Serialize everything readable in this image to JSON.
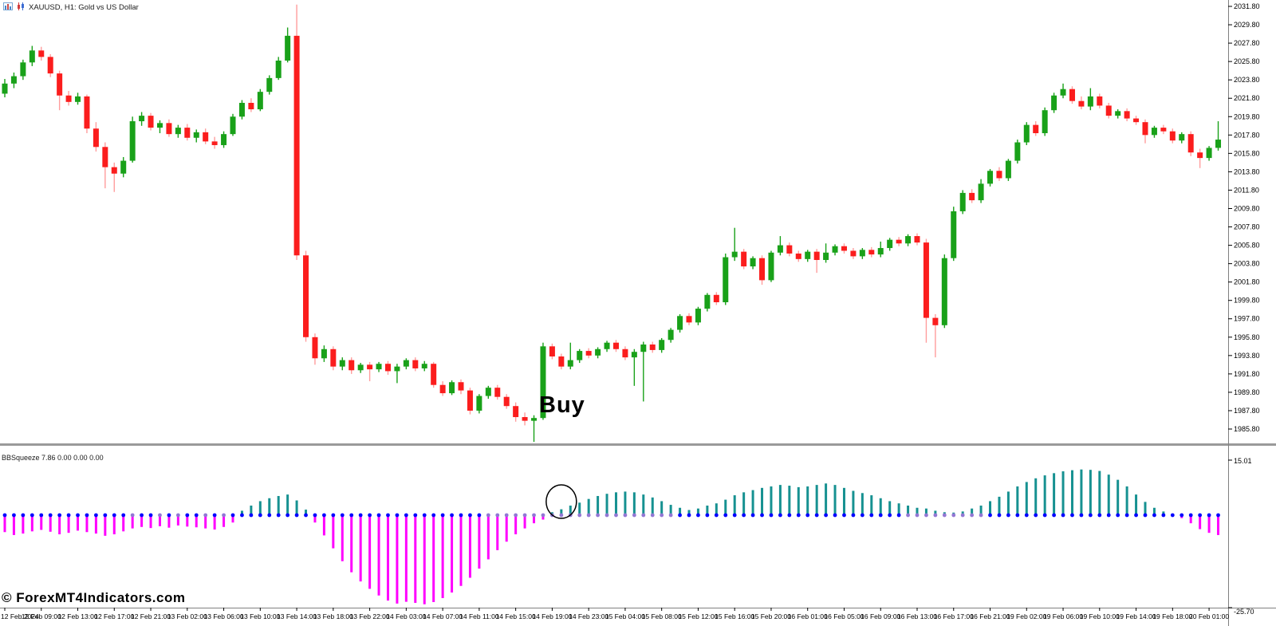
{
  "window": {
    "title": "XAUUSD, H1:  Gold vs US Dollar",
    "icons": [
      "bar-chart-icon",
      "candlestick-icon"
    ]
  },
  "annotations": {
    "buy_text": "Buy",
    "watermark": "© ForexMT4Indicators.com"
  },
  "indicator_header": "BBSqueeze 7.86 0.00 0.00 0.00",
  "chart_data": [
    {
      "type": "candlestick",
      "title": "XAUUSD, H1: Gold vs US Dollar",
      "symbol": "XAUUSD",
      "timeframe": "H1",
      "grid": false,
      "ylim": [
        1984.2,
        2032.5
      ],
      "price_axis": {
        "labels": [
          "2031.80",
          "2029.80",
          "2027.80",
          "2025.80",
          "2023.80",
          "2021.80",
          "2019.80",
          "2017.80",
          "2015.80",
          "2013.80",
          "2011.80",
          "2009.80",
          "2007.80",
          "2005.80",
          "2003.80",
          "2001.80",
          "1999.80",
          "1997.80",
          "1995.80",
          "1993.80",
          "1991.80",
          "1989.80",
          "1987.80",
          "1985.80"
        ],
        "step": 2.0
      },
      "time_labels": [
        "12 Feb 2024",
        "12 Feb 09:00",
        "12 Feb 13:00",
        "12 Feb 17:00",
        "12 Feb 21:00",
        "13 Feb 02:00",
        "13 Feb 06:00",
        "13 Feb 10:00",
        "13 Feb 14:00",
        "13 Feb 18:00",
        "13 Feb 22:00",
        "14 Feb 03:00",
        "14 Feb 07:00",
        "14 Feb 11:00",
        "14 Feb 15:00",
        "14 Feb 19:00",
        "14 Feb 23:00",
        "15 Feb 04:00",
        "15 Feb 08:00",
        "15 Feb 12:00",
        "15 Feb 16:00",
        "15 Feb 20:00",
        "16 Feb 01:00",
        "16 Feb 05:00",
        "16 Feb 09:00",
        "16 Feb 13:00",
        "16 Feb 17:00",
        "16 Feb 21:00",
        "19 Feb 02:00",
        "19 Feb 06:00",
        "19 Feb 10:00",
        "19 Feb 14:00",
        "19 Feb 18:00",
        "20 Feb 01:00"
      ],
      "time_label_candle_step": 4,
      "buy_signal_candle_index": 59,
      "colors": {
        "bull": "#19a119",
        "bear": "#fb1d1d",
        "bull_wick": "#19a119",
        "bear_wick": "#ff9d9d"
      },
      "candles": [
        [
          2022.3,
          2023.9,
          2021.9,
          2023.4
        ],
        [
          2023.4,
          2024.6,
          2022.9,
          2024.2
        ],
        [
          2024.2,
          2026.0,
          2023.8,
          2025.7
        ],
        [
          2025.7,
          2027.5,
          2025.3,
          2027.0
        ],
        [
          2027.0,
          2027.4,
          2025.9,
          2026.3
        ],
        [
          2026.3,
          2026.6,
          2024.1,
          2024.5
        ],
        [
          2024.5,
          2024.8,
          2020.5,
          2022.1
        ],
        [
          2022.1,
          2022.6,
          2021.0,
          2021.4
        ],
        [
          2021.4,
          2022.4,
          2021.1,
          2022.0
        ],
        [
          2022.0,
          2022.2,
          2018.0,
          2018.5
        ],
        [
          2018.5,
          2019.2,
          2016.0,
          2016.5
        ],
        [
          2016.5,
          2017.0,
          2012.0,
          2014.3
        ],
        [
          2014.3,
          2014.8,
          2011.6,
          2013.6
        ],
        [
          2013.6,
          2015.4,
          2013.2,
          2015.0
        ],
        [
          2015.0,
          2019.8,
          2014.8,
          2019.3
        ],
        [
          2019.3,
          2020.3,
          2018.8,
          2019.9
        ],
        [
          2019.9,
          2020.2,
          2018.3,
          2018.6
        ],
        [
          2018.6,
          2019.4,
          2018.0,
          2019.1
        ],
        [
          2019.1,
          2019.5,
          2017.6,
          2017.9
        ],
        [
          2017.9,
          2018.9,
          2017.5,
          2018.6
        ],
        [
          2018.6,
          2019.0,
          2017.2,
          2017.5
        ],
        [
          2017.5,
          2018.4,
          2017.0,
          2018.1
        ],
        [
          2018.1,
          2018.5,
          2016.8,
          2017.1
        ],
        [
          2017.1,
          2017.6,
          2016.3,
          2016.7
        ],
        [
          2016.7,
          2018.2,
          2016.4,
          2017.9
        ],
        [
          2017.9,
          2020.1,
          2017.7,
          2019.8
        ],
        [
          2019.8,
          2021.6,
          2019.5,
          2021.3
        ],
        [
          2021.3,
          2021.8,
          2020.3,
          2020.6
        ],
        [
          2020.6,
          2022.8,
          2020.4,
          2022.5
        ],
        [
          2022.5,
          2024.3,
          2022.2,
          2024.0
        ],
        [
          2024.0,
          2026.3,
          2023.8,
          2025.9
        ],
        [
          2025.9,
          2029.5,
          2025.7,
          2028.6
        ],
        [
          2028.6,
          2032.0,
          2004.2,
          2004.7
        ],
        [
          2004.7,
          2005.2,
          1995.3,
          1995.8
        ],
        [
          1995.8,
          1996.2,
          1992.8,
          1993.5
        ],
        [
          1993.5,
          1994.9,
          1993.1,
          1994.5
        ],
        [
          1994.5,
          1994.8,
          1992.2,
          1992.6
        ],
        [
          1992.6,
          1993.6,
          1992.2,
          1993.3
        ],
        [
          1993.3,
          1993.6,
          1991.8,
          1992.2
        ],
        [
          1992.2,
          1993.0,
          1991.9,
          1992.8
        ],
        [
          1992.8,
          1993.1,
          1991.0,
          1992.3
        ],
        [
          1992.3,
          1993.1,
          1992.0,
          1992.9
        ],
        [
          1992.9,
          1993.2,
          1991.7,
          1992.1
        ],
        [
          1992.1,
          1992.9,
          1990.8,
          1992.6
        ],
        [
          1992.6,
          1993.5,
          1992.3,
          1993.3
        ],
        [
          1993.3,
          1993.6,
          1992.1,
          1992.4
        ],
        [
          1992.4,
          1993.2,
          1992.1,
          1992.9
        ],
        [
          1992.9,
          1993.1,
          1990.3,
          1990.6
        ],
        [
          1990.6,
          1991.0,
          1989.4,
          1989.7
        ],
        [
          1989.7,
          1991.1,
          1989.5,
          1990.9
        ],
        [
          1990.9,
          1991.2,
          1989.6,
          1990.0
        ],
        [
          1990.0,
          1990.3,
          1987.4,
          1987.8
        ],
        [
          1987.8,
          1989.6,
          1987.5,
          1989.4
        ],
        [
          1989.4,
          1990.5,
          1989.1,
          1990.3
        ],
        [
          1990.3,
          1990.6,
          1989.0,
          1989.3
        ],
        [
          1989.3,
          1989.6,
          1988.0,
          1988.3
        ],
        [
          1988.3,
          1988.7,
          1986.6,
          1987.1
        ],
        [
          1987.1,
          1987.6,
          1986.2,
          1986.7
        ],
        [
          1986.7,
          1987.3,
          1984.4,
          1987.0
        ],
        [
          1987.0,
          1995.2,
          1986.8,
          1994.8
        ],
        [
          1994.8,
          1995.1,
          1993.4,
          1993.7
        ],
        [
          1993.7,
          1994.0,
          1992.3,
          1992.6
        ],
        [
          1992.6,
          1995.2,
          1992.3,
          1993.3
        ],
        [
          1993.3,
          1994.5,
          1993.0,
          1994.3
        ],
        [
          1994.3,
          1994.6,
          1993.5,
          1993.8
        ],
        [
          1993.8,
          1994.7,
          1993.5,
          1994.5
        ],
        [
          1994.5,
          1995.4,
          1994.2,
          1995.2
        ],
        [
          1995.2,
          1995.5,
          1994.2,
          1994.5
        ],
        [
          1994.5,
          1994.8,
          1993.3,
          1993.6
        ],
        [
          1993.6,
          1994.5,
          1990.5,
          1994.2
        ],
        [
          1994.2,
          1995.3,
          1988.8,
          1995.0
        ],
        [
          1995.0,
          1995.3,
          1994.1,
          1994.4
        ],
        [
          1994.4,
          1995.7,
          1994.1,
          1995.5
        ],
        [
          1995.5,
          1996.8,
          1995.2,
          1996.6
        ],
        [
          1996.6,
          1998.3,
          1996.3,
          1998.1
        ],
        [
          1998.1,
          1998.4,
          1997.1,
          1997.4
        ],
        [
          1997.4,
          1999.1,
          1997.1,
          1998.9
        ],
        [
          1998.9,
          2000.6,
          1998.6,
          2000.4
        ],
        [
          2000.4,
          2000.7,
          1999.3,
          1999.6
        ],
        [
          1999.6,
          2004.9,
          1999.3,
          2004.5
        ],
        [
          2004.5,
          2007.7,
          2004.1,
          2005.1
        ],
        [
          2005.1,
          2005.4,
          2003.2,
          2003.5
        ],
        [
          2003.5,
          2004.6,
          2003.2,
          2004.4
        ],
        [
          2004.4,
          2004.7,
          2001.5,
          2002.0
        ],
        [
          2002.0,
          2005.2,
          2001.8,
          2005.0
        ],
        [
          2005.0,
          2006.8,
          2004.7,
          2005.8
        ],
        [
          2005.8,
          2006.1,
          2004.6,
          2004.9
        ],
        [
          2004.9,
          2005.2,
          2004.0,
          2004.3
        ],
        [
          2004.3,
          2005.3,
          2004.0,
          2005.1
        ],
        [
          2005.1,
          2005.4,
          2002.8,
          2004.2
        ],
        [
          2004.2,
          2006.0,
          2003.9,
          2005.0
        ],
        [
          2005.0,
          2005.9,
          2004.7,
          2005.7
        ],
        [
          2005.7,
          2006.0,
          2004.9,
          2005.2
        ],
        [
          2005.2,
          2005.5,
          2004.3,
          2004.6
        ],
        [
          2004.6,
          2005.5,
          2004.3,
          2005.3
        ],
        [
          2005.3,
          2005.6,
          2004.5,
          2004.8
        ],
        [
          2004.8,
          2006.2,
          2004.5,
          2005.5
        ],
        [
          2005.5,
          2006.6,
          2005.2,
          2006.4
        ],
        [
          2006.4,
          2006.7,
          2005.7,
          2006.0
        ],
        [
          2006.0,
          2007.0,
          2005.7,
          2006.8
        ],
        [
          2006.8,
          2007.1,
          2005.8,
          2006.1
        ],
        [
          2006.1,
          2006.5,
          1995.2,
          1997.9
        ],
        [
          1997.9,
          1998.3,
          1993.6,
          1997.1
        ],
        [
          1997.1,
          2004.8,
          1996.8,
          2004.4
        ],
        [
          2004.4,
          2010.0,
          2004.1,
          2009.5
        ],
        [
          2009.5,
          2011.8,
          2009.2,
          2011.5
        ],
        [
          2011.5,
          2011.9,
          2010.4,
          2010.7
        ],
        [
          2010.7,
          2013.0,
          2010.4,
          2012.5
        ],
        [
          2012.5,
          2014.1,
          2012.2,
          2013.9
        ],
        [
          2013.9,
          2014.3,
          2012.8,
          2013.1
        ],
        [
          2013.1,
          2015.2,
          2012.8,
          2015.0
        ],
        [
          2015.0,
          2017.3,
          2014.7,
          2017.0
        ],
        [
          2017.0,
          2019.2,
          2016.7,
          2018.9
        ],
        [
          2018.9,
          2019.3,
          2017.7,
          2018.0
        ],
        [
          2018.0,
          2020.8,
          2017.7,
          2020.5
        ],
        [
          2020.5,
          2022.4,
          2020.2,
          2022.1
        ],
        [
          2022.1,
          2023.4,
          2021.8,
          2022.8
        ],
        [
          2022.8,
          2023.1,
          2021.2,
          2021.5
        ],
        [
          2021.5,
          2022.0,
          2020.6,
          2020.9
        ],
        [
          2020.9,
          2022.9,
          2020.5,
          2022.0
        ],
        [
          2022.0,
          2022.3,
          2020.7,
          2021.0
        ],
        [
          2021.0,
          2021.3,
          2019.6,
          2019.9
        ],
        [
          2019.9,
          2020.6,
          2019.6,
          2020.4
        ],
        [
          2020.4,
          2020.7,
          2019.3,
          2019.6
        ],
        [
          2019.6,
          2019.9,
          2018.9,
          2019.2
        ],
        [
          2019.2,
          2019.5,
          2016.9,
          2017.8
        ],
        [
          2017.8,
          2018.8,
          2017.5,
          2018.6
        ],
        [
          2018.6,
          2018.9,
          2017.9,
          2018.2
        ],
        [
          2018.2,
          2018.5,
          2016.9,
          2017.2
        ],
        [
          2017.2,
          2018.1,
          2016.9,
          2017.9
        ],
        [
          2017.9,
          2018.2,
          2015.5,
          2015.9
        ],
        [
          2015.9,
          2016.3,
          2014.2,
          2015.3
        ],
        [
          2015.3,
          2016.6,
          2015.0,
          2016.4
        ],
        [
          2016.4,
          2019.3,
          2016.1,
          2017.3
        ]
      ]
    },
    {
      "type": "bar",
      "name": "BBSqueeze",
      "title": "BBSqueeze 7.86 0.00 0.00 0.00",
      "grid": false,
      "ylim": [
        -25.7,
        15.01
      ],
      "axis_labels": [
        "15.01",
        "-25.70"
      ],
      "legend": "histogram with squeeze dots on zero line",
      "colors": {
        "positive": "#169191",
        "negative": "#ff00fe",
        "dot_normal": "#0000ff",
        "dot_squeeze": "#9277d4"
      },
      "signal_circle_bar_index": 61,
      "values": [
        -4.6,
        -5.4,
        -5.0,
        -4.4,
        -4.0,
        -4.5,
        -5.2,
        -4.8,
        -4.2,
        -4.6,
        -5.0,
        -5.6,
        -5.2,
        -4.4,
        -3.6,
        -3.2,
        -3.5,
        -3.0,
        -3.4,
        -2.8,
        -3.1,
        -3.3,
        -3.6,
        -3.9,
        -3.2,
        -2.0,
        1.2,
        2.6,
        3.8,
        4.6,
        5.2,
        5.6,
        4.0,
        1.5,
        -2.0,
        -5.5,
        -9.0,
        -12.5,
        -15.5,
        -18.0,
        -20.0,
        -21.8,
        -23.2,
        -24.0,
        -23.5,
        -23.8,
        -24.2,
        -23.6,
        -22.5,
        -21.0,
        -19.2,
        -17.0,
        -14.5,
        -12.0,
        -9.5,
        -7.2,
        -5.2,
        -3.6,
        -2.2,
        -1.2,
        0.8,
        1.6,
        2.6,
        3.4,
        4.4,
        5.2,
        5.8,
        6.2,
        6.4,
        6.2,
        5.6,
        4.8,
        3.8,
        2.8,
        2.0,
        1.4,
        1.8,
        2.6,
        3.2,
        4.2,
        5.4,
        6.2,
        6.8,
        7.4,
        7.8,
        8.2,
        8.0,
        7.6,
        7.8,
        8.2,
        8.6,
        8.2,
        7.4,
        6.6,
        6.0,
        5.4,
        4.6,
        3.8,
        3.2,
        2.6,
        2.0,
        1.8,
        1.2,
        0.8,
        0.7,
        1.0,
        1.8,
        2.6,
        3.8,
        5.0,
        6.4,
        7.8,
        9.0,
        10.0,
        10.8,
        11.4,
        11.9,
        12.2,
        12.4,
        12.3,
        12.0,
        11.0,
        9.6,
        7.8,
        5.6,
        3.6,
        2.0,
        1.0,
        0.4,
        -0.8,
        -2.2,
        -3.8,
        -4.8,
        -5.4
      ],
      "gray_dot_indices": [
        14,
        17,
        19,
        22,
        24,
        53,
        54,
        55,
        56,
        57,
        58,
        59,
        60,
        61,
        62,
        63,
        64,
        65,
        66,
        67,
        68,
        69,
        70,
        71,
        72,
        73,
        99,
        100,
        101,
        102,
        103,
        104,
        105,
        106,
        107
      ]
    }
  ]
}
